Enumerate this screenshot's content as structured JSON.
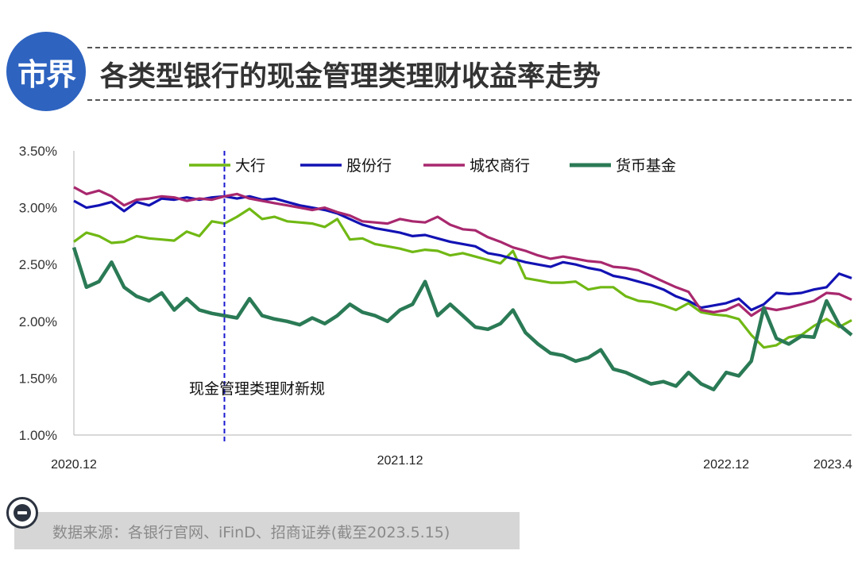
{
  "header": {
    "logo": "市界",
    "title": "各类型银行的现金管理类理财收益率走势"
  },
  "footer": {
    "source": "数据来源：各银行官网、iFinD、招商证券(截至2023.5.15)"
  },
  "colors": {
    "logo_bg": "#2e63c0",
    "big_banks": "#70b814",
    "joint_stock": "#1212b4",
    "city_rural": "#a8286e",
    "money_fund": "#2a7a55",
    "policy_line": "#1a1ad0"
  },
  "chart_data": {
    "type": "line",
    "title": "",
    "xlabel": "",
    "ylabel": "",
    "ylim": [
      1.0,
      3.5
    ],
    "yticks": [
      "3.50%",
      "3.00%",
      "2.50%",
      "2.00%",
      "1.50%",
      "1.00%"
    ],
    "xticks": [
      {
        "label": "2020.12",
        "t": 0
      },
      {
        "label": "2021.12",
        "t": 52
      },
      {
        "label": "2022.12",
        "t": 104
      },
      {
        "label": "2023.4",
        "t": 121
      }
    ],
    "x_range": [
      0,
      124
    ],
    "grid": false,
    "legend_position": "top",
    "annotation": {
      "label": "现金管理类理财新规",
      "t": 24
    },
    "series": [
      {
        "name": "大行",
        "key": "big_banks",
        "points": [
          [
            0,
            2.7
          ],
          [
            2,
            2.78
          ],
          [
            4,
            2.75
          ],
          [
            6,
            2.69
          ],
          [
            8,
            2.7
          ],
          [
            10,
            2.75
          ],
          [
            12,
            2.73
          ],
          [
            14,
            2.72
          ],
          [
            16,
            2.71
          ],
          [
            18,
            2.79
          ],
          [
            20,
            2.75
          ],
          [
            22,
            2.88
          ],
          [
            24,
            2.86
          ],
          [
            26,
            2.92
          ],
          [
            28,
            2.99
          ],
          [
            30,
            2.9
          ],
          [
            32,
            2.92
          ],
          [
            34,
            2.88
          ],
          [
            36,
            2.87
          ],
          [
            38,
            2.86
          ],
          [
            40,
            2.83
          ],
          [
            42,
            2.9
          ],
          [
            44,
            2.72
          ],
          [
            46,
            2.73
          ],
          [
            48,
            2.68
          ],
          [
            50,
            2.66
          ],
          [
            52,
            2.64
          ],
          [
            54,
            2.61
          ],
          [
            56,
            2.63
          ],
          [
            58,
            2.62
          ],
          [
            60,
            2.58
          ],
          [
            62,
            2.6
          ],
          [
            64,
            2.57
          ],
          [
            66,
            2.54
          ],
          [
            68,
            2.51
          ],
          [
            70,
            2.62
          ],
          [
            72,
            2.38
          ],
          [
            74,
            2.36
          ],
          [
            76,
            2.34
          ],
          [
            78,
            2.34
          ],
          [
            80,
            2.35
          ],
          [
            82,
            2.28
          ],
          [
            84,
            2.3
          ],
          [
            86,
            2.3
          ],
          [
            88,
            2.22
          ],
          [
            90,
            2.18
          ],
          [
            92,
            2.17
          ],
          [
            94,
            2.14
          ],
          [
            96,
            2.1
          ],
          [
            98,
            2.16
          ],
          [
            100,
            2.08
          ],
          [
            102,
            2.06
          ],
          [
            104,
            2.05
          ],
          [
            106,
            2.02
          ],
          [
            108,
            1.88
          ],
          [
            110,
            1.77
          ],
          [
            112,
            1.79
          ],
          [
            114,
            1.86
          ],
          [
            116,
            1.88
          ],
          [
            118,
            1.96
          ],
          [
            120,
            2.02
          ],
          [
            122,
            1.95
          ],
          [
            124,
            2.01
          ]
        ]
      },
      {
        "name": "股份行",
        "key": "joint_stock",
        "points": [
          [
            0,
            3.06
          ],
          [
            2,
            3.0
          ],
          [
            4,
            3.02
          ],
          [
            6,
            3.05
          ],
          [
            8,
            2.97
          ],
          [
            10,
            3.05
          ],
          [
            12,
            3.02
          ],
          [
            14,
            3.08
          ],
          [
            16,
            3.07
          ],
          [
            18,
            3.09
          ],
          [
            20,
            3.07
          ],
          [
            22,
            3.09
          ],
          [
            24,
            3.1
          ],
          [
            26,
            3.08
          ],
          [
            28,
            3.1
          ],
          [
            30,
            3.07
          ],
          [
            32,
            3.08
          ],
          [
            34,
            3.05
          ],
          [
            36,
            3.02
          ],
          [
            38,
            3.0
          ],
          [
            40,
            2.98
          ],
          [
            42,
            2.95
          ],
          [
            44,
            2.9
          ],
          [
            46,
            2.85
          ],
          [
            48,
            2.82
          ],
          [
            50,
            2.8
          ],
          [
            52,
            2.78
          ],
          [
            54,
            2.75
          ],
          [
            56,
            2.76
          ],
          [
            58,
            2.73
          ],
          [
            60,
            2.7
          ],
          [
            62,
            2.68
          ],
          [
            64,
            2.66
          ],
          [
            66,
            2.6
          ],
          [
            68,
            2.58
          ],
          [
            70,
            2.55
          ],
          [
            72,
            2.52
          ],
          [
            74,
            2.5
          ],
          [
            76,
            2.48
          ],
          [
            78,
            2.52
          ],
          [
            80,
            2.5
          ],
          [
            82,
            2.47
          ],
          [
            84,
            2.45
          ],
          [
            86,
            2.4
          ],
          [
            88,
            2.38
          ],
          [
            90,
            2.35
          ],
          [
            92,
            2.32
          ],
          [
            94,
            2.28
          ],
          [
            96,
            2.22
          ],
          [
            98,
            2.18
          ],
          [
            100,
            2.12
          ],
          [
            102,
            2.14
          ],
          [
            104,
            2.16
          ],
          [
            106,
            2.2
          ],
          [
            108,
            2.1
          ],
          [
            110,
            2.15
          ],
          [
            112,
            2.25
          ],
          [
            114,
            2.24
          ],
          [
            116,
            2.25
          ],
          [
            118,
            2.28
          ],
          [
            120,
            2.3
          ],
          [
            122,
            2.42
          ],
          [
            124,
            2.38
          ]
        ]
      },
      {
        "name": "城农商行",
        "key": "city_rural",
        "points": [
          [
            0,
            3.18
          ],
          [
            2,
            3.12
          ],
          [
            4,
            3.15
          ],
          [
            6,
            3.1
          ],
          [
            8,
            3.02
          ],
          [
            10,
            3.07
          ],
          [
            12,
            3.08
          ],
          [
            14,
            3.1
          ],
          [
            16,
            3.09
          ],
          [
            18,
            3.06
          ],
          [
            20,
            3.08
          ],
          [
            22,
            3.07
          ],
          [
            24,
            3.1
          ],
          [
            26,
            3.12
          ],
          [
            28,
            3.08
          ],
          [
            30,
            3.06
          ],
          [
            32,
            3.04
          ],
          [
            34,
            3.02
          ],
          [
            36,
            3.0
          ],
          [
            38,
            2.98
          ],
          [
            40,
            3.0
          ],
          [
            42,
            2.96
          ],
          [
            44,
            2.93
          ],
          [
            46,
            2.88
          ],
          [
            48,
            2.87
          ],
          [
            50,
            2.86
          ],
          [
            52,
            2.9
          ],
          [
            54,
            2.88
          ],
          [
            56,
            2.87
          ],
          [
            58,
            2.92
          ],
          [
            60,
            2.85
          ],
          [
            62,
            2.81
          ],
          [
            64,
            2.8
          ],
          [
            66,
            2.74
          ],
          [
            68,
            2.7
          ],
          [
            70,
            2.65
          ],
          [
            72,
            2.62
          ],
          [
            74,
            2.58
          ],
          [
            76,
            2.55
          ],
          [
            78,
            2.57
          ],
          [
            80,
            2.55
          ],
          [
            82,
            2.53
          ],
          [
            84,
            2.52
          ],
          [
            86,
            2.48
          ],
          [
            88,
            2.47
          ],
          [
            90,
            2.45
          ],
          [
            92,
            2.4
          ],
          [
            94,
            2.35
          ],
          [
            96,
            2.3
          ],
          [
            98,
            2.26
          ],
          [
            100,
            2.1
          ],
          [
            102,
            2.08
          ],
          [
            104,
            2.1
          ],
          [
            106,
            2.15
          ],
          [
            108,
            2.05
          ],
          [
            110,
            2.12
          ],
          [
            112,
            2.1
          ],
          [
            114,
            2.12
          ],
          [
            116,
            2.15
          ],
          [
            118,
            2.18
          ],
          [
            120,
            2.25
          ],
          [
            122,
            2.24
          ],
          [
            124,
            2.19
          ]
        ]
      },
      {
        "name": "货币基金",
        "key": "money_fund",
        "points": [
          [
            0,
            2.65
          ],
          [
            2,
            2.3
          ],
          [
            4,
            2.35
          ],
          [
            6,
            2.52
          ],
          [
            8,
            2.3
          ],
          [
            10,
            2.22
          ],
          [
            12,
            2.18
          ],
          [
            14,
            2.25
          ],
          [
            16,
            2.1
          ],
          [
            18,
            2.2
          ],
          [
            20,
            2.1
          ],
          [
            22,
            2.07
          ],
          [
            24,
            2.05
          ],
          [
            26,
            2.03
          ],
          [
            28,
            2.2
          ],
          [
            30,
            2.05
          ],
          [
            32,
            2.02
          ],
          [
            34,
            2.0
          ],
          [
            36,
            1.97
          ],
          [
            38,
            2.03
          ],
          [
            40,
            1.98
          ],
          [
            42,
            2.05
          ],
          [
            44,
            2.15
          ],
          [
            46,
            2.08
          ],
          [
            48,
            2.05
          ],
          [
            50,
            2.0
          ],
          [
            52,
            2.1
          ],
          [
            54,
            2.15
          ],
          [
            56,
            2.35
          ],
          [
            58,
            2.05
          ],
          [
            60,
            2.15
          ],
          [
            62,
            2.05
          ],
          [
            64,
            1.95
          ],
          [
            66,
            1.93
          ],
          [
            68,
            1.98
          ],
          [
            70,
            2.1
          ],
          [
            72,
            1.9
          ],
          [
            74,
            1.8
          ],
          [
            76,
            1.72
          ],
          [
            78,
            1.7
          ],
          [
            80,
            1.65
          ],
          [
            82,
            1.68
          ],
          [
            84,
            1.75
          ],
          [
            86,
            1.58
          ],
          [
            88,
            1.55
          ],
          [
            90,
            1.5
          ],
          [
            92,
            1.45
          ],
          [
            94,
            1.47
          ],
          [
            96,
            1.43
          ],
          [
            98,
            1.55
          ],
          [
            100,
            1.45
          ],
          [
            102,
            1.4
          ],
          [
            104,
            1.55
          ],
          [
            106,
            1.52
          ],
          [
            108,
            1.65
          ],
          [
            110,
            2.12
          ],
          [
            112,
            1.85
          ],
          [
            114,
            1.8
          ],
          [
            116,
            1.87
          ],
          [
            118,
            1.86
          ],
          [
            120,
            2.18
          ],
          [
            122,
            1.97
          ],
          [
            124,
            1.88
          ]
        ]
      }
    ]
  }
}
